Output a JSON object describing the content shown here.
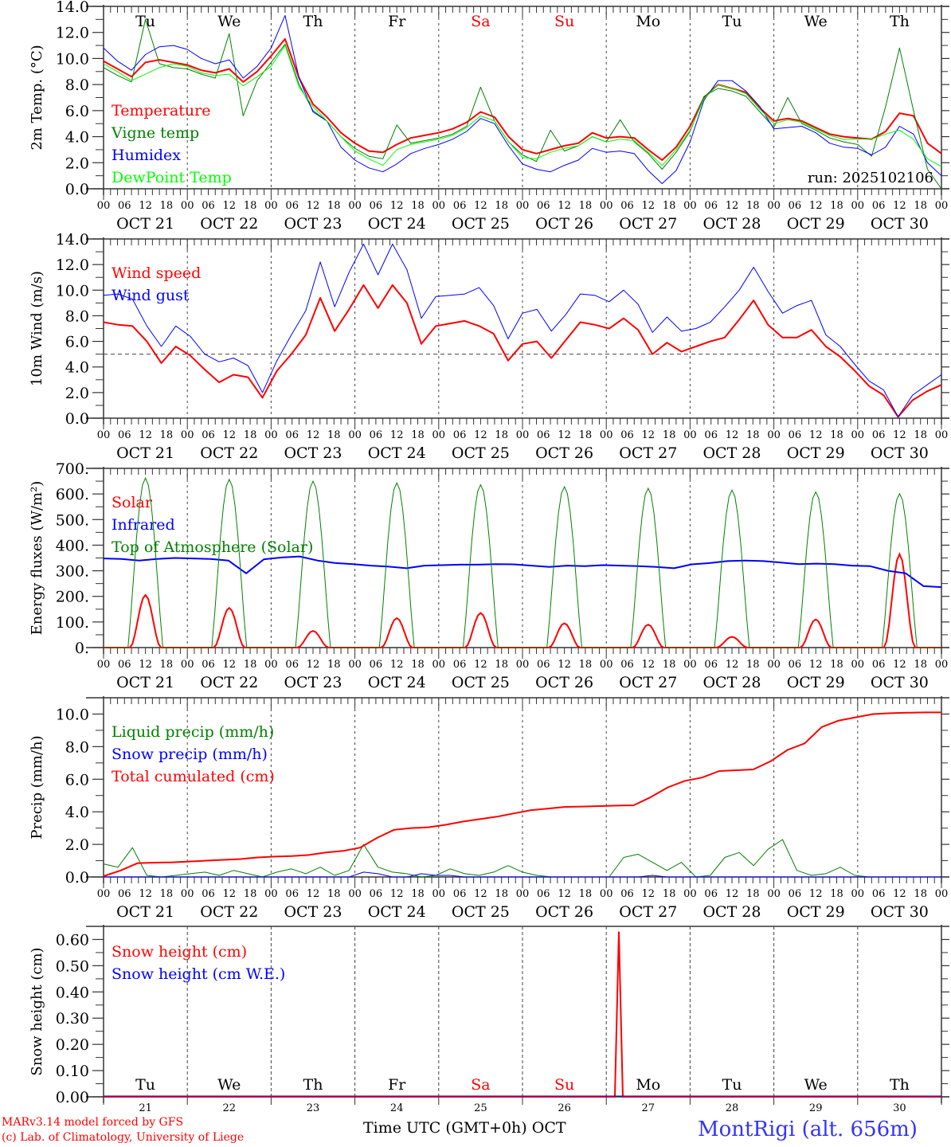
{
  "chart_data": [
    {
      "type": "line",
      "id": "temp",
      "ylabel": "2m Temp. (°C)",
      "ylim": [
        0,
        14
      ],
      "yticks": [
        "0.0",
        "2.0",
        "4.0",
        "6.0",
        "8.0",
        "10.0",
        "12.0",
        "14.0"
      ],
      "day_labels": true,
      "annotation": "run: 2025102106",
      "series": [
        {
          "name": "Temperature",
          "color": "#ff0000",
          "width": 2,
          "values": [
            9.8,
            9.2,
            8.6,
            9.7,
            9.9,
            9.7,
            9.5,
            9.1,
            8.9,
            9.2,
            8.2,
            9.0,
            10.2,
            11.5,
            8.5,
            6.5,
            5.5,
            4.3,
            3.5,
            2.9,
            2.8,
            3.4,
            3.9,
            4.1,
            4.3,
            4.6,
            5.1,
            5.9,
            5.5,
            4.0,
            3.0,
            2.7,
            3.0,
            3.3,
            3.5,
            4.3,
            3.9,
            4.0,
            3.9,
            3.0,
            2.2,
            3.2,
            4.8,
            7.0,
            8.0,
            7.7,
            7.4,
            6.2,
            5.2,
            5.4,
            5.2,
            4.7,
            4.2,
            4.0,
            3.9,
            3.8,
            4.4,
            5.8,
            5.6,
            3.5,
            2.7
          ]
        },
        {
          "name": "Vigne temp",
          "color": "#008000",
          "width": 1,
          "values": [
            9.3,
            8.7,
            8.2,
            13.0,
            9.6,
            9.3,
            9.2,
            8.8,
            8.5,
            11.9,
            5.6,
            8.3,
            9.7,
            11.1,
            8.0,
            6.0,
            5.2,
            4.0,
            3.1,
            2.5,
            2.3,
            4.9,
            3.5,
            3.7,
            3.9,
            4.2,
            4.8,
            7.8,
            5.2,
            3.6,
            2.6,
            2.1,
            4.5,
            2.9,
            3.3,
            4.0,
            3.6,
            5.3,
            3.6,
            2.7,
            1.5,
            2.8,
            4.4,
            7.1,
            7.7,
            7.5,
            7.1,
            5.9,
            4.7,
            7.0,
            5.0,
            4.5,
            3.9,
            3.6,
            3.4,
            2.5,
            6.3,
            10.8,
            6.0,
            1.5,
            0.0
          ]
        },
        {
          "name": "Humidex",
          "color": "#0000ff",
          "width": 1,
          "values": [
            10.8,
            9.8,
            9.1,
            10.3,
            10.9,
            11.0,
            10.7,
            10.0,
            9.6,
            9.9,
            8.5,
            9.4,
            10.8,
            13.3,
            8.5,
            5.9,
            5.2,
            3.2,
            2.2,
            1.6,
            1.3,
            1.9,
            2.7,
            3.1,
            3.4,
            3.8,
            4.4,
            5.4,
            5.0,
            3.3,
            1.9,
            1.5,
            1.3,
            1.8,
            2.2,
            3.1,
            2.8,
            2.9,
            2.7,
            1.4,
            0.4,
            1.4,
            3.6,
            6.8,
            8.3,
            8.3,
            7.5,
            6.3,
            4.6,
            4.7,
            4.8,
            4.3,
            3.5,
            3.2,
            3.1,
            2.6,
            3.2,
            4.8,
            4.2,
            2.0,
            1.0
          ]
        },
        {
          "name": "DewPoint Temp",
          "color": "#00ff00",
          "width": 1,
          "values": [
            9.6,
            9.0,
            8.3,
            8.8,
            9.3,
            9.6,
            9.4,
            8.9,
            8.7,
            8.8,
            7.9,
            8.6,
            9.4,
            11.0,
            7.8,
            6.3,
            5.2,
            4.0,
            2.9,
            2.3,
            1.8,
            3.0,
            3.4,
            3.6,
            3.8,
            4.1,
            4.7,
            5.6,
            5.2,
            3.6,
            2.4,
            2.3,
            2.8,
            3.1,
            3.3,
            4.0,
            3.6,
            3.8,
            3.7,
            2.8,
            1.8,
            3.0,
            4.5,
            6.9,
            8.0,
            7.7,
            7.3,
            6.1,
            5.0,
            5.3,
            5.1,
            4.6,
            4.1,
            3.8,
            3.8,
            3.8,
            4.2,
            4.5,
            3.8,
            2.3,
            1.7
          ]
        }
      ]
    },
    {
      "type": "line",
      "id": "wind",
      "ylabel": "10m Wind (m/s)",
      "ylim": [
        0,
        14
      ],
      "yticks": [
        "0.0",
        "2.0",
        "4.0",
        "6.0",
        "8.0",
        "10.0",
        "12.0",
        "14.0"
      ],
      "ref_line": 5,
      "series": [
        {
          "name": "Wind speed",
          "color": "#ff0000",
          "width": 2,
          "values": [
            7.5,
            7.3,
            7.2,
            6.0,
            4.3,
            5.6,
            4.9,
            3.8,
            2.8,
            3.4,
            3.2,
            1.6,
            3.7,
            5.0,
            6.5,
            9.4,
            6.8,
            8.5,
            10.4,
            8.6,
            10.4,
            9.0,
            5.8,
            7.2,
            7.4,
            7.6,
            7.2,
            6.6,
            4.5,
            5.8,
            6.0,
            4.7,
            6.1,
            7.5,
            7.3,
            7.0,
            7.8,
            6.9,
            5.0,
            5.9,
            5.2,
            5.6,
            6.0,
            6.3,
            7.7,
            9.2,
            7.3,
            6.3,
            6.3,
            6.9,
            5.6,
            4.8,
            3.7,
            2.5,
            1.8,
            0.1,
            1.4,
            2.1,
            2.6
          ]
        },
        {
          "name": "Wind gust",
          "color": "#0000ff",
          "width": 1,
          "values": [
            9.6,
            9.7,
            9.3,
            7.2,
            5.6,
            7.2,
            6.4,
            5.0,
            4.4,
            4.7,
            4.1,
            2.0,
            4.5,
            6.5,
            8.4,
            12.2,
            8.7,
            11.4,
            13.6,
            11.2,
            13.6,
            11.6,
            7.8,
            9.5,
            9.6,
            9.7,
            10.2,
            8.8,
            6.2,
            8.2,
            8.5,
            6.8,
            8.1,
            9.7,
            9.6,
            9.1,
            10.0,
            8.9,
            6.7,
            7.9,
            6.8,
            7.0,
            7.5,
            8.7,
            10.0,
            11.8,
            9.9,
            8.2,
            8.8,
            9.2,
            6.5,
            5.6,
            4.2,
            2.9,
            2.2,
            0.1,
            1.8,
            2.6,
            3.4
          ]
        }
      ]
    },
    {
      "type": "line",
      "id": "energy",
      "ylabel": "Energy fluxes (W/m²)",
      "ylim": [
        0,
        700
      ],
      "yticks": [
        "0.",
        "100.",
        "200.",
        "300.",
        "400.",
        "500.",
        "600.",
        "700."
      ],
      "series": [
        {
          "name": "Solar",
          "color": "#ff0000",
          "width": 2,
          "daily_peaks": [
            205,
            155,
            65,
            115,
            135,
            95,
            90,
            42,
            110,
            365
          ]
        },
        {
          "name": "Infrared",
          "color": "#0000ff",
          "width": 2,
          "values": [
            348,
            346,
            340,
            346,
            350,
            348,
            346,
            340,
            290,
            345,
            352,
            356,
            340,
            330,
            326,
            320,
            316,
            310,
            320,
            322,
            324,
            324,
            326,
            325,
            320,
            315,
            320,
            318,
            322,
            320,
            318,
            315,
            310,
            325,
            330,
            338,
            340,
            338,
            332,
            326,
            328,
            326,
            320,
            318,
            300,
            290,
            240,
            236
          ]
        },
        {
          "name": "Top of Atmosphere (Solar)",
          "color": "#008000",
          "width": 1,
          "daily_peaks": [
            662,
            657,
            650,
            643,
            636,
            628,
            622,
            615,
            608,
            601
          ]
        }
      ]
    },
    {
      "type": "line",
      "id": "precip",
      "ylabel": "Precip (mm/h)",
      "ylim": [
        0,
        11
      ],
      "yticks": [
        "0.0",
        "2.0",
        "4.0",
        "6.0",
        "8.0",
        "10.0"
      ],
      "series": [
        {
          "name": "Liquid precip (mm/h)",
          "color": "#008000",
          "width": 1,
          "values": [
            0.8,
            0.6,
            1.8,
            0.1,
            0.0,
            0.1,
            0.2,
            0.3,
            0.1,
            0.4,
            0.2,
            0.0,
            0.3,
            0.5,
            0.2,
            0.6,
            0.1,
            0.4,
            2.0,
            0.6,
            0.3,
            0.2,
            0.0,
            0.1,
            0.5,
            0.2,
            0.1,
            0.3,
            0.7,
            0.3,
            0.1,
            0.0,
            0.0,
            0.0,
            0.0,
            0.0,
            1.2,
            1.4,
            0.9,
            0.4,
            0.9,
            0.0,
            0.1,
            1.2,
            1.5,
            0.7,
            1.7,
            2.3,
            0.4,
            0.1,
            0.2,
            0.6,
            0.1,
            0.0,
            0.0,
            0.0,
            0.0,
            0.0,
            0.0
          ]
        },
        {
          "name": "Snow precip (mm/h)",
          "color": "#0000ff",
          "width": 1,
          "values": [
            0,
            0,
            0,
            0,
            0,
            0,
            0,
            0,
            0,
            0,
            0,
            0,
            0,
            0,
            0,
            0,
            0,
            0,
            0.3,
            0.2,
            0,
            0,
            0.2,
            0.1,
            0.1,
            0,
            0,
            0,
            0,
            0,
            0,
            0,
            0,
            0,
            0,
            0,
            0,
            0,
            0.1,
            0,
            0,
            0,
            0,
            0,
            0,
            0,
            0,
            0,
            0,
            0,
            0,
            0,
            0,
            0,
            0,
            0,
            0,
            0,
            0
          ]
        },
        {
          "name": "Total cumulated (cm)",
          "color": "#ff0000",
          "width": 2,
          "values": [
            0.05,
            0.4,
            0.85,
            0.88,
            0.9,
            0.95,
            1.0,
            1.05,
            1.1,
            1.2,
            1.25,
            1.28,
            1.35,
            1.5,
            1.6,
            1.8,
            2.4,
            2.9,
            3.0,
            3.05,
            3.2,
            3.4,
            3.55,
            3.7,
            3.9,
            4.1,
            4.2,
            4.3,
            4.32,
            4.35,
            4.38,
            4.4,
            4.9,
            5.5,
            5.9,
            6.1,
            6.5,
            6.55,
            6.6,
            7.1,
            7.8,
            8.2,
            9.2,
            9.6,
            9.8,
            10.0,
            10.05,
            10.08,
            10.1,
            10.1
          ]
        }
      ]
    },
    {
      "type": "line",
      "id": "snow",
      "ylabel": "Snow height (cm)",
      "ylim": [
        0,
        0.65
      ],
      "yticks": [
        "0.00",
        "0.10",
        "0.20",
        "0.30",
        "0.40",
        "0.50",
        "0.60"
      ],
      "series": [
        {
          "name": "Snow height (cm)",
          "color": "#ff0000",
          "width": 2,
          "spike_day": 6.15,
          "spike_value": 0.63
        },
        {
          "name": "Snow height (cm W.E.)",
          "color": "#0000ff",
          "width": 2
        }
      ],
      "xlabel": "Time UTC (GMT+0h)",
      "month": "OCT"
    }
  ],
  "x_axis": {
    "hour_ticks": [
      "00",
      "06",
      "12",
      "18"
    ],
    "end_tick": "00",
    "dates": [
      "OCT 21",
      "OCT 22",
      "OCT 23",
      "OCT 24",
      "OCT 25",
      "OCT 26",
      "OCT 27",
      "OCT 28",
      "OCT 29",
      "OCT 30"
    ],
    "day_numbers": [
      "21",
      "22",
      "23",
      "24",
      "25",
      "26",
      "27",
      "28",
      "29",
      "30"
    ],
    "weekdays": [
      {
        "label": "Tu",
        "color": "#000000"
      },
      {
        "label": "We",
        "color": "#000000"
      },
      {
        "label": "Th",
        "color": "#000000"
      },
      {
        "label": "Fr",
        "color": "#000000"
      },
      {
        "label": "Sa",
        "color": "#ff0000"
      },
      {
        "label": "Su",
        "color": "#ff0000"
      },
      {
        "label": "Mo",
        "color": "#000000"
      },
      {
        "label": "Tu",
        "color": "#000000"
      },
      {
        "label": "We",
        "color": "#000000"
      },
      {
        "label": "Th",
        "color": "#000000"
      }
    ]
  },
  "footer": {
    "model_line": "MARv3.14 model forced by GFS",
    "credit_line": "(c) Lab. of Climatology, University of Liege",
    "station": "MontRigi (alt. 656m)"
  },
  "colors": {
    "red": "#ff0000",
    "blue": "#0000ff",
    "green": "#008000",
    "lime": "#00ff00",
    "station": "#3333ff"
  }
}
